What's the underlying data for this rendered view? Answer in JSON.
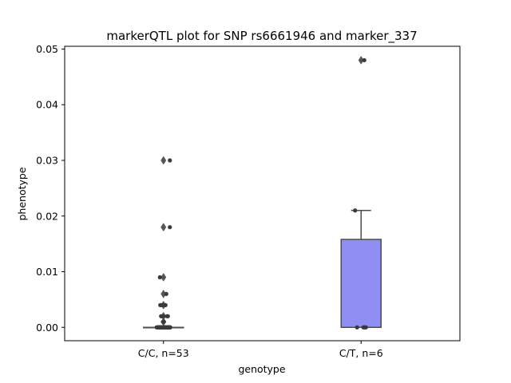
{
  "chart_data": {
    "type": "box",
    "title": "markerQTL plot for SNP rs6661946 and marker_337",
    "xlabel": "genotype",
    "ylabel": "phenotype",
    "ylim": [
      -0.0024,
      0.0505
    ],
    "yticks": [
      "0.00",
      "0.01",
      "0.02",
      "0.03",
      "0.04",
      "0.05"
    ],
    "categories": [
      "C/C, n=53",
      "C/T, n=6"
    ],
    "colors": {
      "box_ct": "#8f8ef2",
      "line": "#4d4d4d",
      "point": "#3a3a3a",
      "outlier": "#555555"
    },
    "boxes": [
      {
        "category": "C/C, n=53",
        "q1": 0.0,
        "median": 0.0,
        "q3": 0.0,
        "whisker_low": 0.0,
        "whisker_high": 0.0,
        "outliers": [
          0.03,
          0.018,
          0.009,
          0.006,
          0.004,
          0.002,
          0.001
        ]
      },
      {
        "category": "C/T, n=6",
        "q1": 0.0,
        "median": 0.0,
        "q3": 0.0158,
        "whisker_low": 0.0,
        "whisker_high": 0.021,
        "outliers": [
          0.048
        ]
      }
    ],
    "strip_points": [
      {
        "category": "C/C, n=53",
        "values": [
          0.03,
          0.018,
          0.009,
          0.006,
          0.004,
          0.004,
          0.004,
          0.004,
          0.002,
          0.002,
          0.002,
          0.002,
          0.002,
          0.001,
          0.001,
          0,
          0,
          0,
          0,
          0,
          0,
          0,
          0,
          0,
          0,
          0,
          0,
          0,
          0,
          0,
          0,
          0,
          0,
          0,
          0,
          0,
          0,
          0,
          0,
          0,
          0,
          0,
          0,
          0,
          0,
          0,
          0,
          0,
          0,
          0,
          0,
          0,
          0
        ],
        "jitter": [
          0.16,
          0.16,
          -0.09,
          0.07,
          -0.08,
          -0.05,
          0.05,
          -0.02,
          -0.06,
          0.09,
          0.11,
          -0.01,
          -0.03,
          -0.01,
          0.01,
          -0.17,
          -0.15,
          -0.13,
          -0.11,
          -0.1,
          -0.09,
          -0.08,
          -0.07,
          -0.06,
          -0.05,
          -0.04,
          -0.03,
          -0.02,
          -0.01,
          0.0,
          0.01,
          0.02,
          0.03,
          0.04,
          0.05,
          0.06,
          0.07,
          0.08,
          0.09,
          0.1,
          0.11,
          0.12,
          0.13,
          0.14,
          0.15,
          0.16,
          0.17,
          -0.12,
          -0.02,
          0.02,
          0.1,
          0.13,
          0.06
        ]
      },
      {
        "category": "C/T, n=6",
        "values": [
          0.048,
          0.021,
          0,
          0,
          0,
          0
        ],
        "jitter": [
          0.08,
          -0.15,
          -0.1,
          0.06,
          0.09,
          0.12
        ]
      }
    ]
  }
}
